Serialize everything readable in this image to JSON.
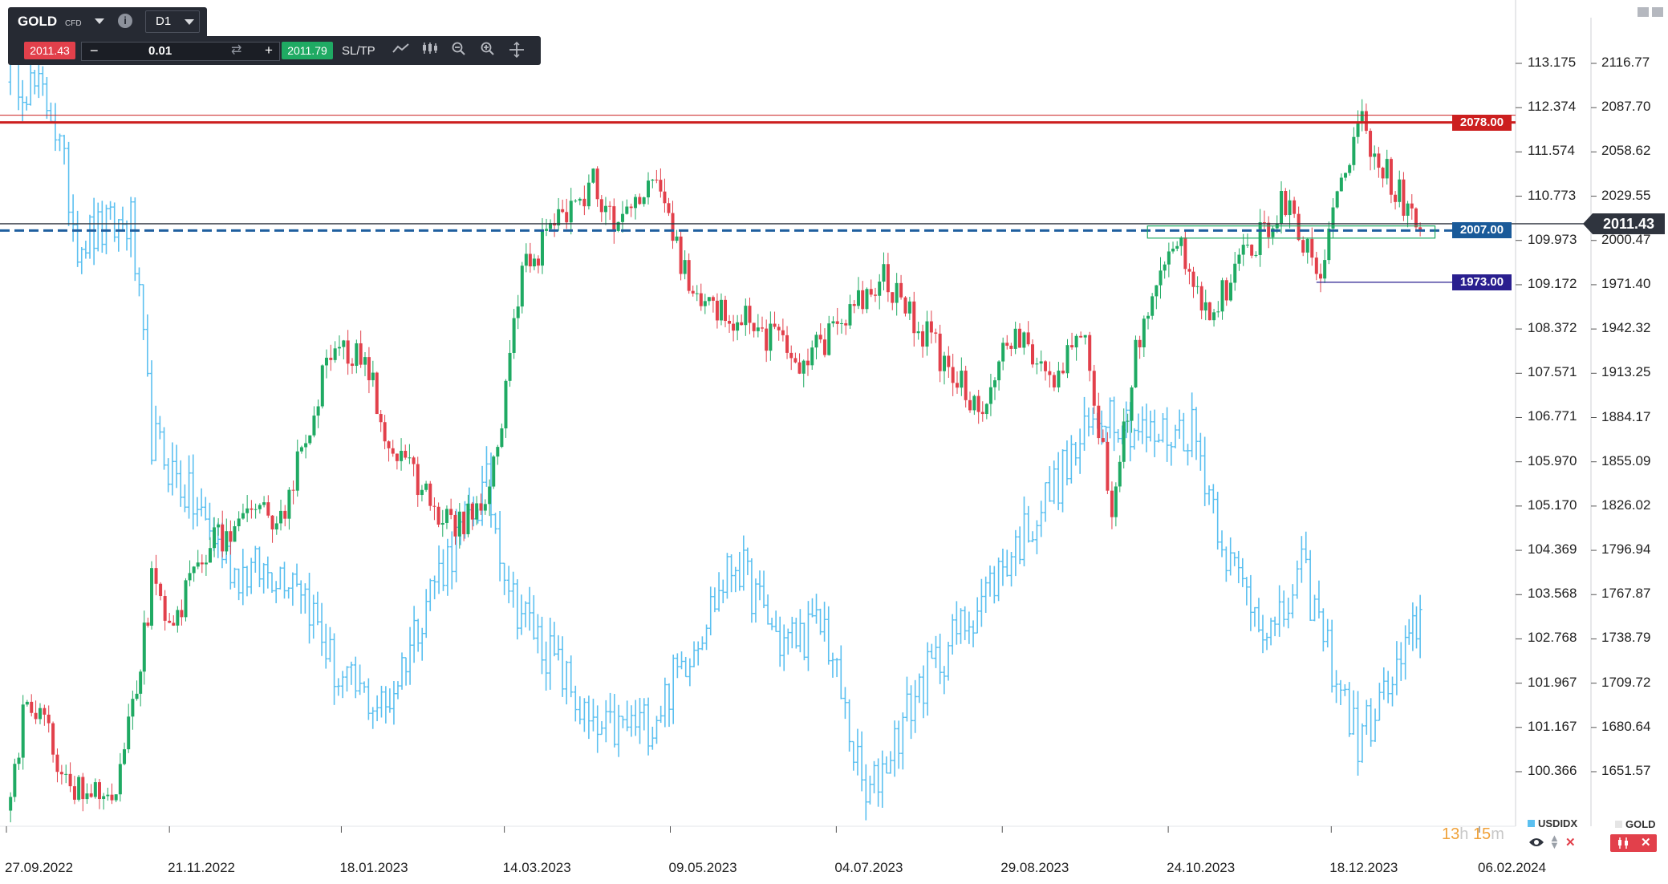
{
  "toolbar": {
    "symbol": "GOLD",
    "symbol_type": "CFD",
    "timeframe": "D1",
    "sell_price": "2011.43",
    "buy_price": "2011.79",
    "quantity": "0.01",
    "minus": "−",
    "plus": "+",
    "sltp_label": "SL/TP",
    "info": "i",
    "icons": [
      "swap-icon",
      "line-chart-icon",
      "candles-icon",
      "zoom-out-icon",
      "zoom-in-icon",
      "crosshair-icon"
    ]
  },
  "colors": {
    "up": "#1faa63",
    "down": "#e2404b",
    "usdidx": "#5bc0f0",
    "resistance": "#cc1f1f",
    "support_blue": "#1f5f9f",
    "support_navy": "#2a1f8f",
    "price": "#2f343e",
    "zone": "#1faa63"
  },
  "chart_data": {
    "type": "candlestick",
    "title": "",
    "timeframe": "D1",
    "x_tick_labels": [
      "27.09.2022",
      "21.11.2022",
      "18.01.2023",
      "14.03.2023",
      "09.05.2023",
      "04.07.2023",
      "29.08.2023",
      "24.10.2023",
      "18.12.2023",
      "06.02.2024"
    ],
    "y_right_label": "GOLD",
    "y_right_ticks": [
      2116.77,
      2087.7,
      2058.62,
      2029.55,
      2000.47,
      1971.4,
      1942.32,
      1913.25,
      1884.17,
      1855.09,
      1826.02,
      1796.94,
      1767.87,
      1738.79,
      1709.72,
      1680.64,
      1651.57
    ],
    "y_left_label": "USDIDX",
    "y_left_ticks": [
      "113.175",
      "112.374",
      "111.574",
      "110.773",
      "109.973",
      "109.172",
      "108.372",
      "107.571",
      "106.771",
      "105.970",
      "105.170",
      "104.369",
      "103.568",
      "102.768",
      "101.967",
      "101.167",
      "100.366"
    ],
    "gold_last_price": "2011.43",
    "series": [
      {
        "name": "GOLD",
        "style": "candles",
        "axis": "right",
        "sampled_closes": [
          {
            "date": "2022-09-27",
            "close": 1628
          },
          {
            "date": "2022-10-04",
            "close": 1700
          },
          {
            "date": "2022-10-20",
            "close": 1640
          },
          {
            "date": "2022-11-03",
            "close": 1632
          },
          {
            "date": "2022-11-10",
            "close": 1707
          },
          {
            "date": "2022-11-15",
            "close": 1775
          },
          {
            "date": "2022-11-21",
            "close": 1740
          },
          {
            "date": "2022-12-02",
            "close": 1798
          },
          {
            "date": "2022-12-13",
            "close": 1810
          },
          {
            "date": "2022-12-30",
            "close": 1825
          },
          {
            "date": "2023-01-13",
            "close": 1920
          },
          {
            "date": "2023-01-26",
            "close": 1930
          },
          {
            "date": "2023-02-03",
            "close": 1865
          },
          {
            "date": "2023-02-24",
            "close": 1812
          },
          {
            "date": "2023-03-09",
            "close": 1830
          },
          {
            "date": "2023-03-20",
            "close": 1980
          },
          {
            "date": "2023-04-04",
            "close": 2020
          },
          {
            "date": "2023-04-13",
            "close": 2040
          },
          {
            "date": "2023-04-20",
            "close": 2005
          },
          {
            "date": "2023-05-03",
            "close": 2040
          },
          {
            "date": "2023-05-18",
            "close": 1958
          },
          {
            "date": "2023-06-02",
            "close": 1949
          },
          {
            "date": "2023-06-23",
            "close": 1921
          },
          {
            "date": "2023-07-20",
            "close": 1975
          },
          {
            "date": "2023-08-08",
            "close": 1925
          },
          {
            "date": "2023-08-21",
            "close": 1890
          },
          {
            "date": "2023-09-01",
            "close": 1940
          },
          {
            "date": "2023-09-14",
            "close": 1911
          },
          {
            "date": "2023-09-26",
            "close": 1935
          },
          {
            "date": "2023-10-05",
            "close": 1820
          },
          {
            "date": "2023-10-13",
            "close": 1928
          },
          {
            "date": "2023-10-27",
            "close": 2005
          },
          {
            "date": "2023-11-07",
            "close": 1950
          },
          {
            "date": "2023-11-24",
            "close": 2005
          },
          {
            "date": "2023-12-04",
            "close": 2030
          },
          {
            "date": "2023-12-13",
            "close": 1975
          },
          {
            "date": "2023-12-27",
            "close": 2080
          },
          {
            "date": "2024-01-17",
            "close": 2007
          }
        ]
      },
      {
        "name": "USDIDX",
        "style": "bars",
        "axis": "left",
        "sampled_closes": [
          {
            "date": "2022-09-27",
            "close": 113.2
          },
          {
            "date": "2022-10-12",
            "close": 112.4
          },
          {
            "date": "2022-10-21",
            "close": 110.0
          },
          {
            "date": "2022-11-08",
            "close": 110.3
          },
          {
            "date": "2022-11-15",
            "close": 106.4
          },
          {
            "date": "2022-11-29",
            "close": 105.2
          },
          {
            "date": "2022-12-13",
            "close": 104.0
          },
          {
            "date": "2023-01-03",
            "close": 104.0
          },
          {
            "date": "2023-01-17",
            "close": 102.0
          },
          {
            "date": "2023-02-02",
            "close": 101.5
          },
          {
            "date": "2023-02-17",
            "close": 103.7
          },
          {
            "date": "2023-03-08",
            "close": 105.5
          },
          {
            "date": "2023-03-17",
            "close": 103.5
          },
          {
            "date": "2023-04-04",
            "close": 102.0
          },
          {
            "date": "2023-04-13",
            "close": 101.0
          },
          {
            "date": "2023-05-03",
            "close": 101.3
          },
          {
            "date": "2023-05-31",
            "close": 104.2
          },
          {
            "date": "2023-06-15",
            "close": 102.7
          },
          {
            "date": "2023-06-30",
            "close": 103.0
          },
          {
            "date": "2023-07-14",
            "close": 99.8
          },
          {
            "date": "2023-08-01",
            "close": 101.9
          },
          {
            "date": "2023-08-22",
            "close": 103.5
          },
          {
            "date": "2023-09-14",
            "close": 105.4
          },
          {
            "date": "2023-10-03",
            "close": 107.0
          },
          {
            "date": "2023-10-18",
            "close": 106.4
          },
          {
            "date": "2023-11-01",
            "close": 106.6
          },
          {
            "date": "2023-11-14",
            "close": 104.1
          },
          {
            "date": "2023-11-29",
            "close": 102.8
          },
          {
            "date": "2023-12-08",
            "close": 104.0
          },
          {
            "date": "2023-12-27",
            "close": 100.9
          },
          {
            "date": "2024-01-12",
            "close": 102.4
          },
          {
            "date": "2024-01-17",
            "close": 103.3
          }
        ]
      }
    ],
    "horizontal_levels": [
      {
        "label": "2078.00",
        "value": 2078.0,
        "style": "solid",
        "color": "#cc1f1f"
      },
      {
        "label": "2007.00",
        "value": 2007.0,
        "style": "dashed",
        "color": "#1f5f9f"
      },
      {
        "label": "1973.00",
        "value": 1973.0,
        "style": "segment",
        "color": "#2a1f8f"
      }
    ],
    "zone": {
      "from": 2002,
      "to": 2010,
      "color": "#1faa63"
    }
  },
  "timer": {
    "hours": "13",
    "h": "h",
    "minutes": "15",
    "m": "m"
  },
  "legend": {
    "usdidx": "USDIDX",
    "gold": "GOLD"
  }
}
